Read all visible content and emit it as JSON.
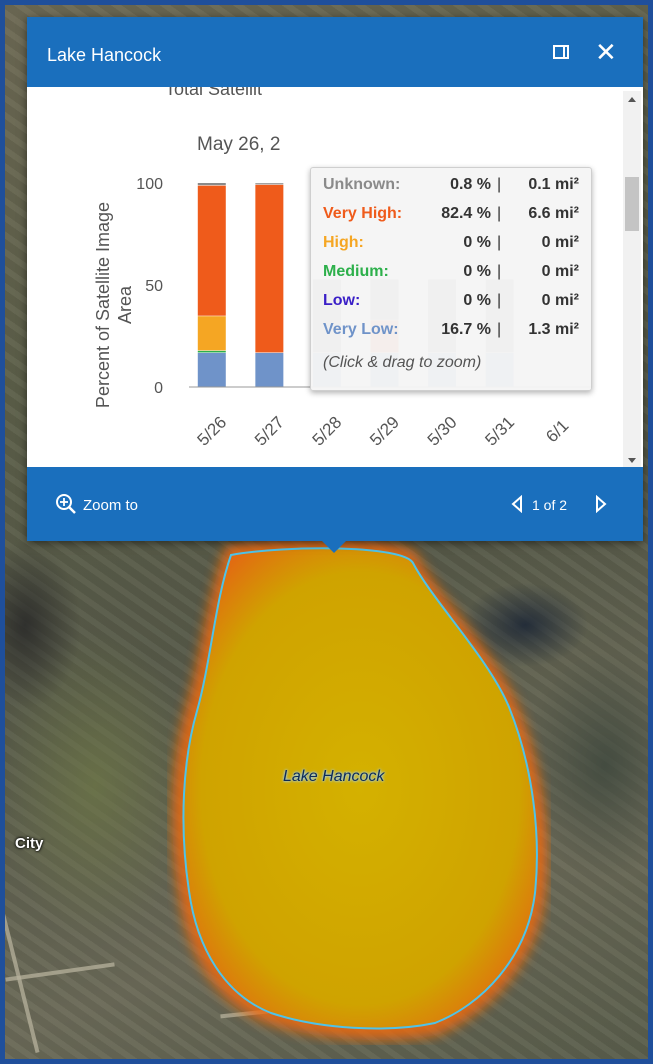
{
  "map": {
    "lake_label": "Lake Hancock",
    "city_label": "City"
  },
  "popup": {
    "title": "Lake Hancock",
    "close_glyph": "✕",
    "chart_title_partial": "Total Satellit",
    "chart_subtitle_partial": "May 26, 2",
    "footer": {
      "zoom_label": "Zoom to",
      "pager": "1 of 2"
    }
  },
  "tooltip": {
    "rows": [
      {
        "label": "Unknown:",
        "pct": "0.8 %",
        "area": "0.1 mi²",
        "color": "#8a8a8a"
      },
      {
        "label": "Very High:",
        "pct": "82.4 %",
        "area": "6.6 mi²",
        "color": "#ef5b1b"
      },
      {
        "label": "High:",
        "pct": "0 %",
        "area": "0 mi²",
        "color": "#f5a623"
      },
      {
        "label": "Medium:",
        "pct": "0 %",
        "area": "0 mi²",
        "color": "#2db04b"
      },
      {
        "label": "Low:",
        "pct": "0 %",
        "area": "0 mi²",
        "color": "#3a1fc7"
      },
      {
        "label": "Very Low:",
        "pct": "16.7 %",
        "area": "1.3 mi²",
        "color": "#6f93c9"
      }
    ],
    "hint": "(Click & drag to zoom)"
  },
  "chart_data": {
    "type": "bar",
    "stacked": true,
    "categories": [
      "5/26",
      "5/27",
      "5/28",
      "5/29",
      "5/30",
      "5/31",
      "6/1"
    ],
    "ylabel": "Percent of Satellite Image Area",
    "ylim": [
      0,
      100
    ],
    "yticks": [
      0,
      50,
      100
    ],
    "series": [
      {
        "name": "Very Low",
        "color": "#6f93c9",
        "values": [
          16.7,
          16.7,
          16.7,
          16.7,
          16.7,
          16.7,
          0
        ]
      },
      {
        "name": "Low",
        "color": "#3a1fc7",
        "values": [
          0,
          0,
          0,
          0,
          0,
          0,
          0
        ]
      },
      {
        "name": "Medium",
        "color": "#2db04b",
        "values": [
          1,
          0,
          0,
          0,
          0,
          0,
          0
        ]
      },
      {
        "name": "High",
        "color": "#f5a623",
        "values": [
          17,
          0,
          0,
          0,
          0,
          0,
          0
        ]
      },
      {
        "name": "Very High",
        "color": "#ef5b1b",
        "values": [
          64,
          82.4,
          0,
          16,
          0,
          0,
          0
        ]
      },
      {
        "name": "Unknown",
        "color": "#8a8a8a",
        "values": [
          1.3,
          0.8,
          36,
          20,
          36,
          36,
          0
        ]
      }
    ]
  }
}
